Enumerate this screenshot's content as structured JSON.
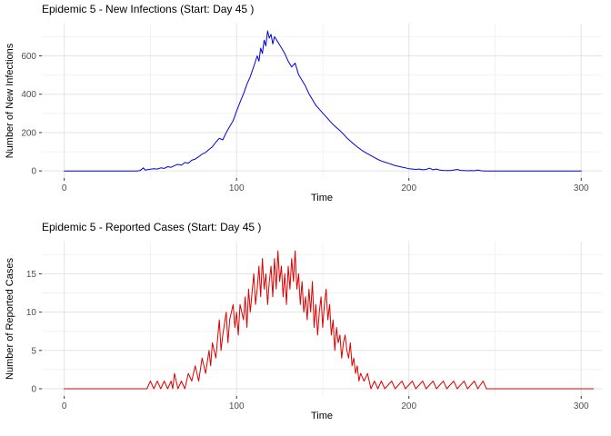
{
  "figure": {
    "background": "#ffffff"
  },
  "theme": {
    "grid_major": "#e3e3e3",
    "grid_minor": "#f2f2f2",
    "tick_color": "#333333",
    "tick_label_color": "#4d4d4d",
    "text_color": "#000000"
  },
  "chart_data": [
    {
      "type": "line",
      "title": "Epidemic 5 - New Infections (Start: Day 45 )",
      "xlabel": "Time",
      "ylabel": "Number of New Infections",
      "line_color": "#0000dd",
      "legend": "none",
      "grid": true,
      "x_ticks": [
        0,
        100,
        200,
        300
      ],
      "y_ticks": [
        0,
        200,
        400,
        600
      ],
      "xlim": [
        -13,
        312
      ],
      "ylim": [
        -37,
        768
      ],
      "points": [
        [
          0,
          0
        ],
        [
          2,
          0
        ],
        [
          4,
          0
        ],
        [
          6,
          0
        ],
        [
          8,
          0
        ],
        [
          10,
          0
        ],
        [
          12,
          0
        ],
        [
          14,
          0
        ],
        [
          16,
          0
        ],
        [
          18,
          0
        ],
        [
          20,
          0
        ],
        [
          22,
          0
        ],
        [
          24,
          0
        ],
        [
          26,
          0
        ],
        [
          28,
          0
        ],
        [
          30,
          0
        ],
        [
          32,
          0
        ],
        [
          34,
          0
        ],
        [
          36,
          0
        ],
        [
          38,
          0
        ],
        [
          40,
          0
        ],
        [
          42,
          0
        ],
        [
          44,
          2
        ],
        [
          46,
          16
        ],
        [
          47,
          4
        ],
        [
          48,
          6
        ],
        [
          50,
          9
        ],
        [
          52,
          12
        ],
        [
          54,
          10
        ],
        [
          56,
          16
        ],
        [
          58,
          13
        ],
        [
          60,
          22
        ],
        [
          62,
          19
        ],
        [
          64,
          28
        ],
        [
          66,
          34
        ],
        [
          68,
          30
        ],
        [
          70,
          44
        ],
        [
          72,
          40
        ],
        [
          74,
          56
        ],
        [
          76,
          62
        ],
        [
          78,
          74
        ],
        [
          80,
          88
        ],
        [
          82,
          96
        ],
        [
          84,
          112
        ],
        [
          86,
          126
        ],
        [
          88,
          150
        ],
        [
          90,
          170
        ],
        [
          92,
          162
        ],
        [
          94,
          200
        ],
        [
          96,
          232
        ],
        [
          98,
          262
        ],
        [
          100,
          312
        ],
        [
          102,
          358
        ],
        [
          104,
          402
        ],
        [
          106,
          452
        ],
        [
          108,
          492
        ],
        [
          110,
          545
        ],
        [
          112,
          600
        ],
        [
          113,
          572
        ],
        [
          114,
          640
        ],
        [
          115,
          612
        ],
        [
          116,
          682
        ],
        [
          117,
          652
        ],
        [
          118,
          730
        ],
        [
          119,
          692
        ],
        [
          120,
          712
        ],
        [
          121,
          662
        ],
        [
          122,
          700
        ],
        [
          124,
          672
        ],
        [
          126,
          642
        ],
        [
          128,
          612
        ],
        [
          130,
          572
        ],
        [
          132,
          542
        ],
        [
          134,
          562
        ],
        [
          136,
          502
        ],
        [
          138,
          472
        ],
        [
          140,
          442
        ],
        [
          142,
          402
        ],
        [
          144,
          372
        ],
        [
          146,
          342
        ],
        [
          148,
          322
        ],
        [
          150,
          302
        ],
        [
          152,
          282
        ],
        [
          154,
          262
        ],
        [
          156,
          242
        ],
        [
          158,
          226
        ],
        [
          160,
          210
        ],
        [
          162,
          192
        ],
        [
          164,
          172
        ],
        [
          166,
          156
        ],
        [
          168,
          140
        ],
        [
          170,
          126
        ],
        [
          172,
          112
        ],
        [
          174,
          100
        ],
        [
          176,
          90
        ],
        [
          178,
          80
        ],
        [
          180,
          70
        ],
        [
          182,
          60
        ],
        [
          184,
          52
        ],
        [
          186,
          46
        ],
        [
          188,
          40
        ],
        [
          190,
          34
        ],
        [
          192,
          28
        ],
        [
          194,
          24
        ],
        [
          196,
          20
        ],
        [
          198,
          16
        ],
        [
          200,
          12
        ],
        [
          202,
          10
        ],
        [
          204,
          8
        ],
        [
          206,
          10
        ],
        [
          208,
          6
        ],
        [
          210,
          8
        ],
        [
          212,
          14
        ],
        [
          214,
          6
        ],
        [
          216,
          10
        ],
        [
          218,
          4
        ],
        [
          220,
          3
        ],
        [
          222,
          2
        ],
        [
          224,
          2
        ],
        [
          226,
          4
        ],
        [
          228,
          8
        ],
        [
          230,
          3
        ],
        [
          232,
          2
        ],
        [
          234,
          1
        ],
        [
          236,
          2
        ],
        [
          238,
          1
        ],
        [
          240,
          4
        ],
        [
          242,
          1
        ],
        [
          244,
          0
        ],
        [
          248,
          0
        ],
        [
          252,
          0
        ],
        [
          256,
          0
        ],
        [
          260,
          0
        ],
        [
          264,
          0
        ],
        [
          268,
          0
        ],
        [
          272,
          0
        ],
        [
          276,
          0
        ],
        [
          280,
          0
        ],
        [
          284,
          0
        ],
        [
          288,
          0
        ],
        [
          292,
          0
        ],
        [
          296,
          0
        ],
        [
          300,
          0
        ]
      ]
    },
    {
      "type": "line",
      "title": "Epidemic 5 - Reported Cases (Start: Day 45 )",
      "xlabel": "Time",
      "ylabel": "Number of Reported Cases",
      "line_color": "#dd0000",
      "legend": "none",
      "grid": true,
      "x_ticks": [
        0,
        100,
        200,
        300
      ],
      "y_ticks": [
        0,
        5,
        10,
        15
      ],
      "xlim": [
        -13,
        312
      ],
      "ylim": [
        -0.95,
        19.2
      ],
      "points": [
        [
          0,
          0
        ],
        [
          4,
          0
        ],
        [
          8,
          0
        ],
        [
          12,
          0
        ],
        [
          16,
          0
        ],
        [
          20,
          0
        ],
        [
          24,
          0
        ],
        [
          28,
          0
        ],
        [
          32,
          0
        ],
        [
          36,
          0
        ],
        [
          40,
          0
        ],
        [
          44,
          0
        ],
        [
          48,
          0
        ],
        [
          50,
          1
        ],
        [
          52,
          0
        ],
        [
          54,
          1
        ],
        [
          56,
          0
        ],
        [
          58,
          1
        ],
        [
          60,
          0
        ],
        [
          62,
          1
        ],
        [
          63,
          0
        ],
        [
          64,
          2
        ],
        [
          66,
          0
        ],
        [
          68,
          1
        ],
        [
          70,
          0
        ],
        [
          72,
          2
        ],
        [
          74,
          1
        ],
        [
          76,
          3
        ],
        [
          78,
          1
        ],
        [
          80,
          4
        ],
        [
          82,
          2
        ],
        [
          84,
          5
        ],
        [
          85,
          3
        ],
        [
          86,
          6
        ],
        [
          88,
          4
        ],
        [
          90,
          9
        ],
        [
          91,
          5
        ],
        [
          92,
          7
        ],
        [
          94,
          10
        ],
        [
          95,
          6
        ],
        [
          96,
          9
        ],
        [
          98,
          11
        ],
        [
          99,
          8
        ],
        [
          100,
          10
        ],
        [
          101,
          7
        ],
        [
          102,
          11
        ],
        [
          104,
          9
        ],
        [
          105,
          12
        ],
        [
          106,
          8
        ],
        [
          107,
          13
        ],
        [
          108,
          10
        ],
        [
          110,
          15
        ],
        [
          111,
          11
        ],
        [
          112,
          13
        ],
        [
          113,
          16
        ],
        [
          114,
          12
        ],
        [
          115,
          17
        ],
        [
          116,
          13
        ],
        [
          117,
          15
        ],
        [
          118,
          11
        ],
        [
          119,
          14
        ],
        [
          120,
          16
        ],
        [
          121,
          12
        ],
        [
          122,
          17
        ],
        [
          123,
          13
        ],
        [
          124,
          18
        ],
        [
          125,
          14
        ],
        [
          126,
          16
        ],
        [
          127,
          12
        ],
        [
          128,
          15
        ],
        [
          129,
          11
        ],
        [
          130,
          16
        ],
        [
          131,
          13
        ],
        [
          132,
          17
        ],
        [
          133,
          14
        ],
        [
          134,
          18
        ],
        [
          135,
          13
        ],
        [
          136,
          15
        ],
        [
          137,
          11
        ],
        [
          138,
          14
        ],
        [
          139,
          10
        ],
        [
          140,
          12
        ],
        [
          141,
          9
        ],
        [
          142,
          13
        ],
        [
          143,
          10
        ],
        [
          144,
          14
        ],
        [
          145,
          8
        ],
        [
          146,
          11
        ],
        [
          147,
          7
        ],
        [
          148,
          10
        ],
        [
          149,
          12
        ],
        [
          150,
          8
        ],
        [
          151,
          11
        ],
        [
          152,
          13
        ],
        [
          153,
          9
        ],
        [
          154,
          11
        ],
        [
          155,
          7
        ],
        [
          156,
          9
        ],
        [
          157,
          5
        ],
        [
          158,
          8
        ],
        [
          159,
          6
        ],
        [
          160,
          7
        ],
        [
          161,
          4
        ],
        [
          162,
          6
        ],
        [
          163,
          7
        ],
        [
          164,
          5
        ],
        [
          165,
          4
        ],
        [
          166,
          6
        ],
        [
          167,
          3
        ],
        [
          168,
          4
        ],
        [
          169,
          2
        ],
        [
          170,
          3
        ],
        [
          171,
          1
        ],
        [
          172,
          2
        ],
        [
          174,
          1
        ],
        [
          176,
          2
        ],
        [
          178,
          0
        ],
        [
          180,
          1
        ],
        [
          182,
          0
        ],
        [
          184,
          1
        ],
        [
          186,
          0
        ],
        [
          190,
          1
        ],
        [
          192,
          0
        ],
        [
          196,
          1
        ],
        [
          198,
          0
        ],
        [
          202,
          1
        ],
        [
          204,
          0
        ],
        [
          208,
          1
        ],
        [
          210,
          0
        ],
        [
          214,
          1
        ],
        [
          216,
          0
        ],
        [
          220,
          1
        ],
        [
          222,
          0
        ],
        [
          226,
          1
        ],
        [
          228,
          0
        ],
        [
          232,
          1
        ],
        [
          234,
          0
        ],
        [
          238,
          1
        ],
        [
          240,
          0
        ],
        [
          243,
          1
        ],
        [
          245,
          0
        ],
        [
          250,
          0
        ],
        [
          255,
          0
        ],
        [
          260,
          0
        ],
        [
          265,
          0
        ],
        [
          270,
          0
        ],
        [
          275,
          0
        ],
        [
          280,
          0
        ],
        [
          285,
          0
        ],
        [
          290,
          0
        ],
        [
          295,
          0
        ],
        [
          300,
          0
        ],
        [
          305,
          0
        ],
        [
          307,
          0
        ]
      ]
    }
  ]
}
